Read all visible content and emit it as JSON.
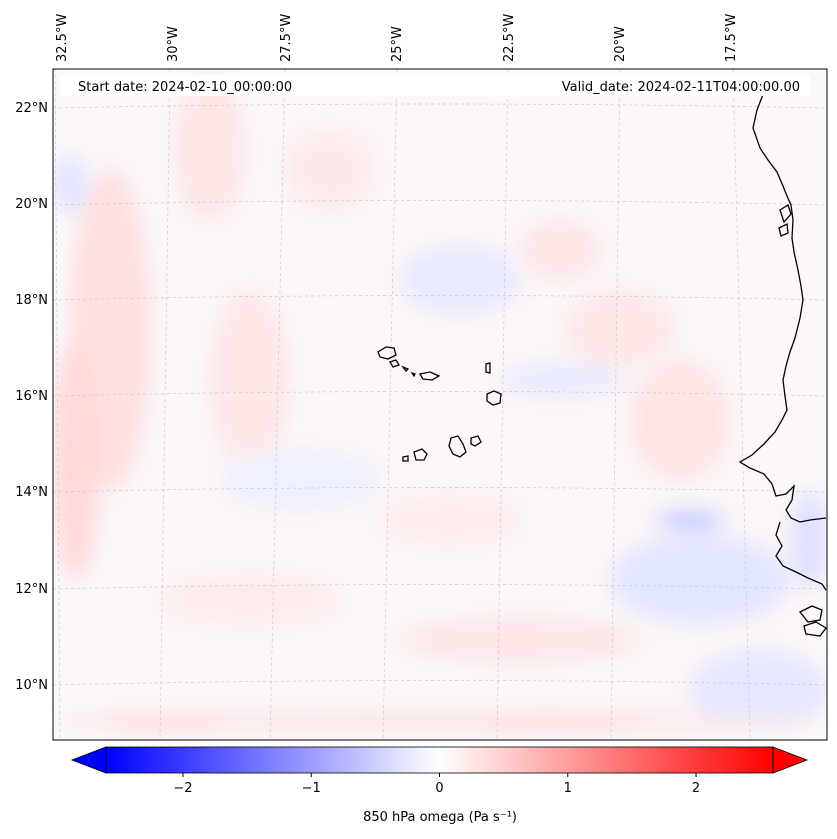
{
  "header": {
    "start_date": "Start date: 2024-02-10_00:00:00",
    "valid_date": "Valid_date: 2024-02-11T04:00:00.00"
  },
  "map": {
    "lon_labels": [
      "32.5°W",
      "30°W",
      "27.5°W",
      "25°W",
      "22.5°W",
      "20°W",
      "17.5°W"
    ],
    "lat_labels": [
      "22°N",
      "20°N",
      "18°N",
      "16°N",
      "14°N",
      "12°N",
      "10°N"
    ],
    "gridlines": true,
    "coastline_color": "#000000"
  },
  "colorbar": {
    "label": "850 hPa omega (Pa s⁻¹)",
    "ticks": [
      "−2",
      "−1",
      "0",
      "1",
      "2"
    ],
    "tick_values": [
      -2,
      -1,
      0,
      1,
      2
    ],
    "range": [
      -2.6,
      2.6
    ],
    "cmap": "bwr",
    "color_low": "#0000ff",
    "color_mid": "#ffffff",
    "color_high": "#ff0000"
  }
}
